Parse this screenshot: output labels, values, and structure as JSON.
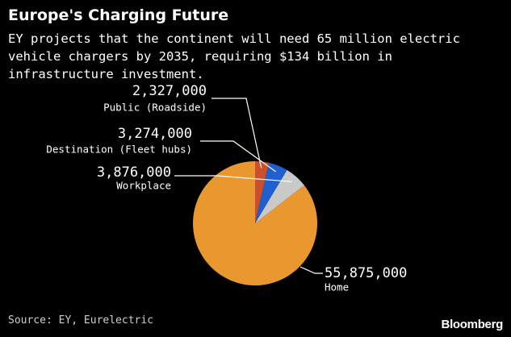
{
  "header": {
    "title": "Europe's Charging Future",
    "subtitle": "EY projects that the continent will need 65 million electric vehicle chargers by 2035, requiring $134 billion in infrastructure investment."
  },
  "footer": {
    "source": "Source: EY, Eurelectric",
    "brand": "Bloomberg"
  },
  "chart_data": {
    "type": "pie",
    "title": "Europe's Charging Future",
    "subtitle": "EY projects that the continent will need 65 million electric vehicle chargers by 2035, requiring $134 billion in infrastructure investment.",
    "categories": [
      "Home",
      "Workplace",
      "Destination (Fleet hubs)",
      "Public (Roadside)"
    ],
    "values": [
      55875000,
      3876000,
      3274000,
      2327000
    ],
    "value_labels": [
      "55,875,000",
      "3,876,000",
      "3,274,000",
      "2,327,000"
    ],
    "colors": [
      "#e8982e",
      "#c9c9c9",
      "#1f5fcf",
      "#c8502a"
    ],
    "start_at": "top",
    "direction": "counter-clockwise",
    "legend": "none"
  }
}
